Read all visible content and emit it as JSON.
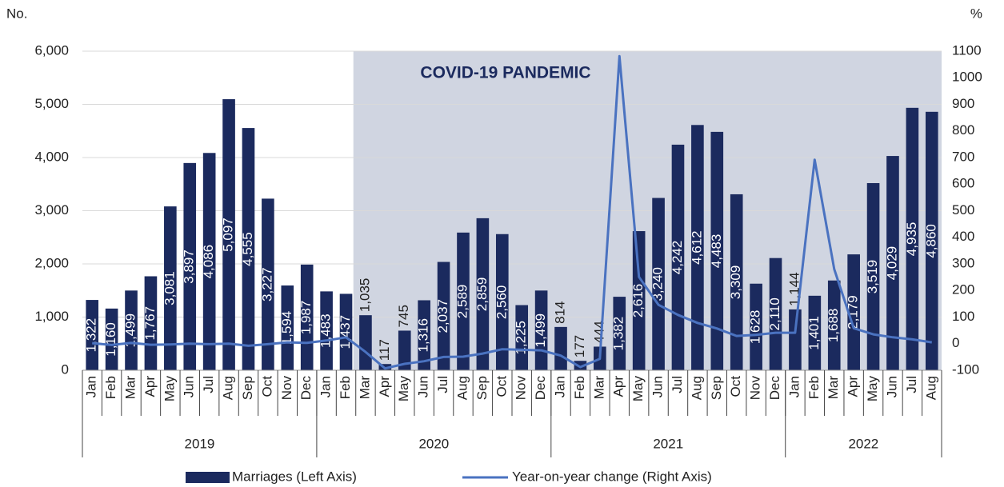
{
  "chart_data": {
    "type": "bar_line",
    "left_axis_label": "No.",
    "right_axis_label": "%",
    "annotation": "COVID-19 PANDEMIC",
    "categories": [
      "Jan",
      "Feb",
      "Mar",
      "Apr",
      "May",
      "Jun",
      "Jul",
      "Aug",
      "Sep",
      "Oct",
      "Nov",
      "Dec",
      "Jan",
      "Feb",
      "Mar",
      "Apr",
      "May",
      "Jun",
      "Jul",
      "Aug",
      "Sep",
      "Oct",
      "Nov",
      "Dec",
      "Jan",
      "Feb",
      "Mar",
      "Apr",
      "May",
      "Jun",
      "Jul",
      "Aug",
      "Sep",
      "Oct",
      "Nov",
      "Dec",
      "Jan",
      "Feb",
      "Mar",
      "Apr",
      "May",
      "Jun",
      "Jul",
      "Aug"
    ],
    "years": [
      "2019",
      "2020",
      "2021",
      "2022"
    ],
    "series": [
      {
        "name": "Marriages (Left Axis)",
        "type": "bar",
        "color": "#1b2a5e",
        "values": [
          1322,
          1160,
          1499,
          1767,
          3081,
          3897,
          4086,
          5097,
          4555,
          3227,
          1594,
          1987,
          1483,
          1437,
          1035,
          117,
          745,
          1316,
          2037,
          2589,
          2859,
          2560,
          1225,
          1499,
          814,
          177,
          444,
          1382,
          2616,
          3240,
          4242,
          4612,
          4483,
          3309,
          1628,
          2110,
          1144,
          1401,
          1688,
          2179,
          3519,
          4029,
          4935,
          4860
        ],
        "value_labels": [
          "1,322",
          "1,160",
          "1,499",
          "1,767",
          "3,081",
          "3,897",
          "4,086",
          "5,097",
          "4,555",
          "3,227",
          "1,594",
          "1,987",
          "1,483",
          "1,437",
          "1,035",
          "117",
          "745",
          "1,316",
          "2,037",
          "2,589",
          "2,859",
          "2,560",
          "1,225",
          "1,499",
          "814",
          "177",
          "444",
          "1,382",
          "2,616",
          "3,240",
          "4,242",
          "4,612",
          "4,483",
          "3,309",
          "1,628",
          "2,110",
          "1,144",
          "1,401",
          "1,688",
          "2,179",
          "3,519",
          "4,029",
          "4,935",
          "4,860"
        ]
      },
      {
        "name": "Year-on-year change (Right Axis)",
        "type": "line",
        "axis": "y2",
        "color": "#4a72c0",
        "values": [
          2,
          -5,
          3,
          -4,
          -3,
          0,
          -2,
          0,
          -8,
          -2,
          5,
          3,
          12,
          24,
          -31,
          -93,
          -76,
          -66,
          -50,
          -49,
          -37,
          -21,
          -23,
          -25,
          -45,
          -88,
          -57,
          1081,
          251,
          146,
          108,
          78,
          57,
          29,
          33,
          41,
          41,
          692,
          280,
          58,
          35,
          24,
          16,
          5
        ]
      }
    ],
    "ylim": [
      0,
      6000
    ],
    "yticks": [
      0,
      {
        "value": 1000,
        "label": "1,000"
      },
      {
        "value": 2000,
        "label": "2,000"
      },
      {
        "value": 3000,
        "label": "3,000"
      },
      {
        "value": 4000,
        "label": "4,000"
      },
      {
        "value": 5000,
        "label": "5,000"
      },
      {
        "value": 6000,
        "label": "6,000"
      }
    ],
    "y2lim": [
      -100,
      1100
    ],
    "y2ticks": [
      -100,
      0,
      100,
      200,
      300,
      400,
      500,
      600,
      700,
      800,
      900,
      1000,
      1100
    ],
    "grid": true
  }
}
